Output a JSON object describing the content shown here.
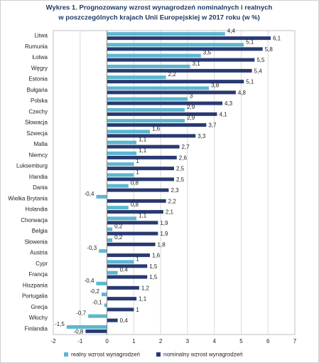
{
  "chart_data": {
    "type": "hbar",
    "title": [
      "Wykres 1. Prognozowany wzrost wynagrodzeń nominalnych i realnych",
      "w poszczególnych krajach Unii Europejskiej w 2017 roku (w %)"
    ],
    "categories": [
      "Litwa",
      "Rumunia",
      "Łotwa",
      "Węgry",
      "Estonia",
      "Bułgaria",
      "Polska",
      "Czechy",
      "Słowacja",
      "Szwecja",
      "Malta",
      "Niemcy",
      "Luksemburg",
      "Irlandia",
      "Dania",
      "Wielka Brytania",
      "Holandia",
      "Chorwacja",
      "Belgia",
      "Słowenia",
      "Austria",
      "Cypr",
      "Francja",
      "Hiszpania",
      "Portugalia",
      "Grecja",
      "Włochy",
      "Finlandia"
    ],
    "series": [
      {
        "name": "realny wzrost wynagrodzeń",
        "color": "#5bb7cf",
        "values": [
          4.4,
          5.1,
          3.5,
          3.1,
          2.2,
          3.8,
          3,
          2.9,
          2.9,
          1.6,
          1.1,
          1.1,
          1,
          1,
          0.8,
          -0.4,
          0.8,
          1.1,
          0.2,
          0.2,
          -0.3,
          1,
          0.4,
          -0.4,
          -0.2,
          -0.1,
          -0.7,
          -1.5
        ],
        "value_labels": [
          "4,4",
          "5,1",
          "3,5",
          "3,1",
          "2,2",
          "3,8",
          "3",
          "2,9",
          "2,9",
          "1,6",
          "1,1",
          "1,1",
          "1",
          "1",
          "0,8",
          "-0,4",
          "0,8",
          "1,1",
          "0,2",
          "0,2",
          "-0,3",
          "1",
          "0,4",
          "-0,4",
          "-0,2",
          "-0,1",
          "-0,7",
          "-1,5"
        ]
      },
      {
        "name": "nominalny wzrost wynagrodzeń",
        "color": "#283a70",
        "values": [
          6.1,
          5.8,
          5.5,
          5.4,
          5.1,
          4.8,
          4.3,
          4.1,
          3.7,
          3.3,
          2.7,
          2.6,
          2.5,
          2.5,
          2.3,
          2.2,
          2.1,
          1.9,
          1.9,
          1.8,
          1.6,
          1.5,
          1.5,
          1.2,
          1.1,
          1,
          0.4,
          -0.8
        ],
        "value_labels": [
          "6,1",
          "5,8",
          "5,5",
          "5,4",
          "5,1",
          "4,8",
          "4,3",
          "4,1",
          "3,7",
          "3,3",
          "2,7",
          "2,6",
          "2,5",
          "2,5",
          "2,3",
          "2,2",
          "2,1",
          "1,9",
          "1,9",
          "1,8",
          "1,6",
          "1,5",
          "1,5",
          "1,2",
          "1,1",
          "1",
          "0,4",
          "-0,8"
        ]
      }
    ],
    "xlim": [
      -2,
      7
    ],
    "xticks": [
      -2,
      -1,
      0,
      1,
      2,
      3,
      4,
      5,
      6,
      7
    ],
    "grid": true,
    "legend": "bottom"
  }
}
